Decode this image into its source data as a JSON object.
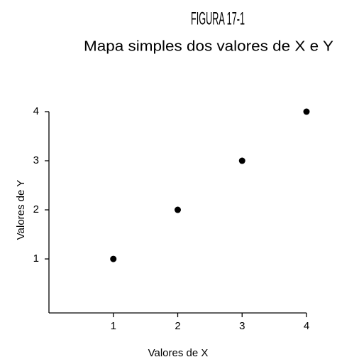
{
  "chart_data": {
    "type": "scatter",
    "title": "FIGURA 17-1",
    "subtitle": "Mapa simples dos valores de X e Y",
    "xlabel": "Valores de X",
    "ylabel": "Valores de Y",
    "x": [
      1,
      2,
      3,
      4
    ],
    "values": [
      1,
      2,
      3,
      4
    ],
    "color": "#000000",
    "xlim": [
      0,
      4
    ],
    "ylim": [
      -0.1,
      4
    ],
    "xticks": [
      1,
      2,
      3,
      4
    ],
    "yticks": [
      1,
      2,
      3,
      4
    ]
  }
}
